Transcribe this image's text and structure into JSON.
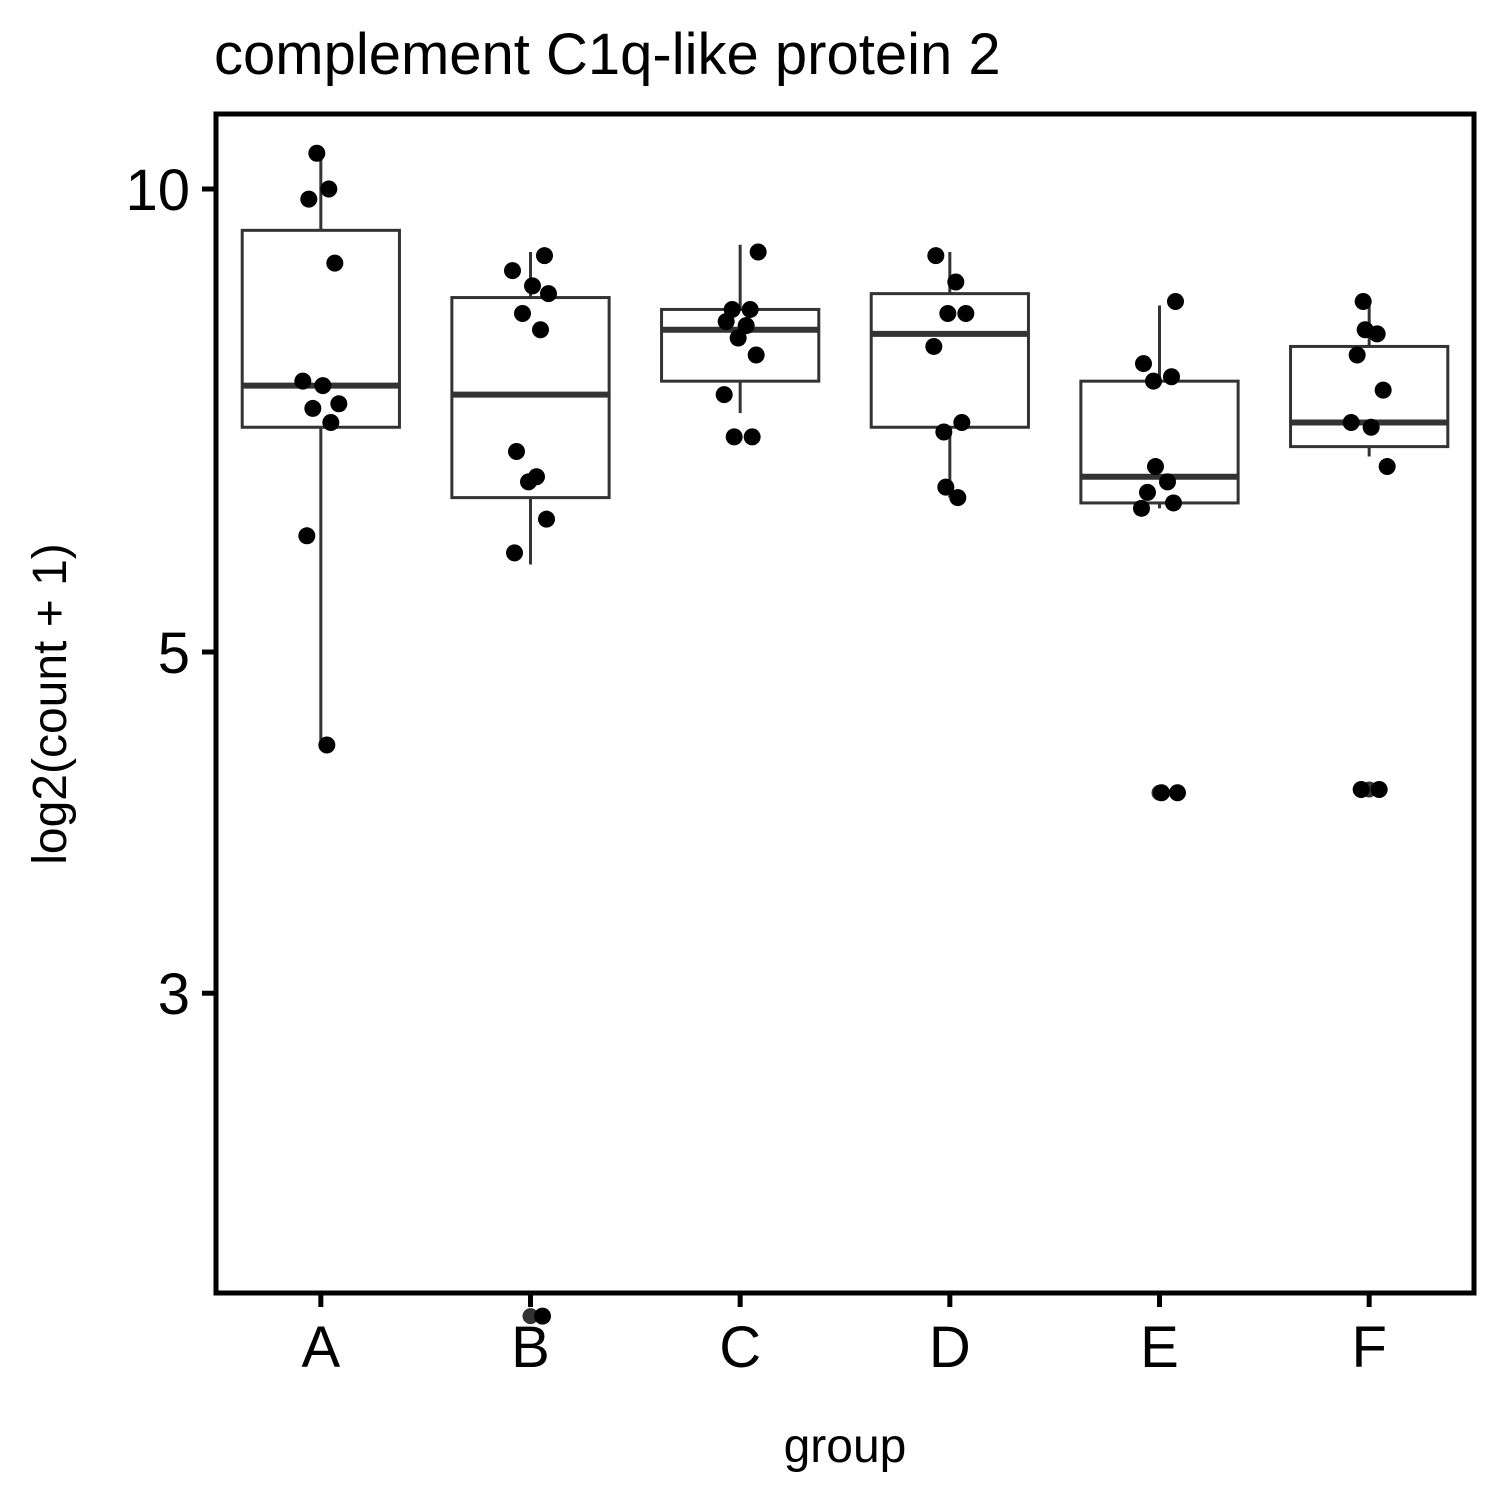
{
  "chart_data": {
    "type": "box",
    "title": "complement C1q-like protein 2",
    "xlabel": "group",
    "ylabel": "log2(count + 1)",
    "y_scale": "log",
    "ylim": [
      1.68,
      10.9
    ],
    "y_ticks": [
      3,
      5,
      10
    ],
    "grid": false,
    "legend": "none",
    "categories": [
      "A",
      "B",
      "C",
      "D",
      "E",
      "F"
    ],
    "boxes": [
      {
        "group": "A",
        "lower_whisker": 4.35,
        "q1": 7.0,
        "median": 7.45,
        "q3": 9.4,
        "upper_whisker": 10.5,
        "outliers": []
      },
      {
        "group": "B",
        "lower_whisker": 5.7,
        "q1": 6.3,
        "median": 7.35,
        "q3": 8.5,
        "upper_whisker": 9.1,
        "outliers": [
          1.85
        ]
      },
      {
        "group": "C",
        "lower_whisker": 7.15,
        "q1": 7.5,
        "median": 8.1,
        "q3": 8.35,
        "upper_whisker": 9.2,
        "outliers": []
      },
      {
        "group": "D",
        "lower_whisker": 6.3,
        "q1": 7.0,
        "median": 8.05,
        "q3": 8.55,
        "upper_whisker": 9.1,
        "outliers": []
      },
      {
        "group": "E",
        "lower_whisker": 6.2,
        "q1": 6.25,
        "median": 6.5,
        "q3": 7.5,
        "upper_whisker": 8.4,
        "outliers": [
          4.05
        ]
      },
      {
        "group": "F",
        "lower_whisker": 6.7,
        "q1": 6.8,
        "median": 7.05,
        "q3": 7.9,
        "upper_whisker": 8.4,
        "outliers": [
          4.07
        ]
      }
    ],
    "points": [
      {
        "group": "A",
        "y": 10.55
      },
      {
        "group": "A",
        "y": 10.0
      },
      {
        "group": "A",
        "y": 9.85
      },
      {
        "group": "A",
        "y": 8.95
      },
      {
        "group": "A",
        "y": 7.5
      },
      {
        "group": "A",
        "y": 7.45
      },
      {
        "group": "A",
        "y": 7.25
      },
      {
        "group": "A",
        "y": 7.2
      },
      {
        "group": "A",
        "y": 7.05
      },
      {
        "group": "A",
        "y": 5.95
      },
      {
        "group": "A",
        "y": 4.35
      },
      {
        "group": "B",
        "y": 9.05
      },
      {
        "group": "B",
        "y": 8.85
      },
      {
        "group": "B",
        "y": 8.65
      },
      {
        "group": "B",
        "y": 8.55
      },
      {
        "group": "B",
        "y": 8.3
      },
      {
        "group": "B",
        "y": 8.1
      },
      {
        "group": "B",
        "y": 6.75
      },
      {
        "group": "B",
        "y": 6.5
      },
      {
        "group": "B",
        "y": 6.45
      },
      {
        "group": "B",
        "y": 6.1
      },
      {
        "group": "B",
        "y": 5.8
      },
      {
        "group": "B",
        "y": 1.85
      },
      {
        "group": "C",
        "y": 9.1
      },
      {
        "group": "C",
        "y": 8.35
      },
      {
        "group": "C",
        "y": 8.35
      },
      {
        "group": "C",
        "y": 8.2
      },
      {
        "group": "C",
        "y": 8.15
      },
      {
        "group": "C",
        "y": 8.0
      },
      {
        "group": "C",
        "y": 7.8
      },
      {
        "group": "C",
        "y": 7.35
      },
      {
        "group": "C",
        "y": 6.9
      },
      {
        "group": "C",
        "y": 6.9
      },
      {
        "group": "D",
        "y": 9.05
      },
      {
        "group": "D",
        "y": 8.7
      },
      {
        "group": "D",
        "y": 8.3
      },
      {
        "group": "D",
        "y": 8.3
      },
      {
        "group": "D",
        "y": 7.9
      },
      {
        "group": "D",
        "y": 7.05
      },
      {
        "group": "D",
        "y": 6.95
      },
      {
        "group": "D",
        "y": 6.4
      },
      {
        "group": "D",
        "y": 6.3
      },
      {
        "group": "E",
        "y": 8.45
      },
      {
        "group": "E",
        "y": 7.7
      },
      {
        "group": "E",
        "y": 7.55
      },
      {
        "group": "E",
        "y": 7.5
      },
      {
        "group": "E",
        "y": 6.6
      },
      {
        "group": "E",
        "y": 6.45
      },
      {
        "group": "E",
        "y": 6.35
      },
      {
        "group": "E",
        "y": 6.25
      },
      {
        "group": "E",
        "y": 6.2
      },
      {
        "group": "E",
        "y": 4.05
      },
      {
        "group": "E",
        "y": 4.05
      },
      {
        "group": "F",
        "y": 8.45
      },
      {
        "group": "F",
        "y": 8.1
      },
      {
        "group": "F",
        "y": 8.05
      },
      {
        "group": "F",
        "y": 7.8
      },
      {
        "group": "F",
        "y": 7.4
      },
      {
        "group": "F",
        "y": 7.05
      },
      {
        "group": "F",
        "y": 7.0
      },
      {
        "group": "F",
        "y": 6.6
      },
      {
        "group": "F",
        "y": 4.07
      },
      {
        "group": "F",
        "y": 4.07
      }
    ]
  }
}
